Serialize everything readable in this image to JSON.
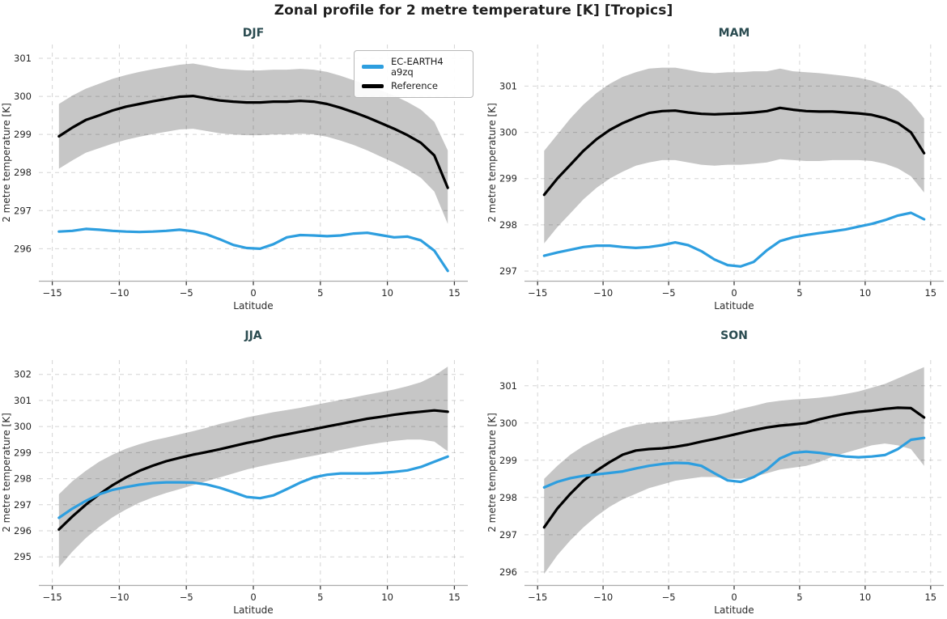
{
  "title": "Zonal profile for 2 metre temperature [K] [Tropics]",
  "colors": {
    "model_line": "#2d9edf",
    "reference_line": "#000000",
    "uncertainty_band": "#c6c6c6",
    "season_title": "#2a4b50",
    "grid": "rgba(0,0,0,0.17)",
    "axis_line": "#ababab",
    "tick_mark": "#3b3b3b",
    "tick_label": "#262626",
    "axis_label": "#2b2b2b",
    "figure_title": "#1f1f1f"
  },
  "legend": {
    "items": [
      {
        "label": "EC-EARTH4 a9zq",
        "color": "#2d9edf"
      },
      {
        "label": "Reference",
        "color": "#000000"
      }
    ]
  },
  "chart_data": [
    {
      "id": "djf",
      "type": "line",
      "title": "DJF",
      "xlabel": "Latitude",
      "ylabel": "2 metre temperature [K]",
      "xlim": [
        -16,
        16
      ],
      "ylim": [
        295.16,
        301.36
      ],
      "xticks": [
        -15,
        -10,
        -5,
        0,
        5,
        10,
        15
      ],
      "yticks": [
        296,
        297,
        298,
        299,
        300,
        301
      ],
      "legend": true,
      "x": [
        -14.5,
        -13.5,
        -12.5,
        -11.5,
        -10.5,
        -9.5,
        -8.5,
        -7.5,
        -6.5,
        -5.5,
        -4.5,
        -3.5,
        -2.5,
        -1.5,
        -0.5,
        0.5,
        1.5,
        2.5,
        3.5,
        4.5,
        5.5,
        6.5,
        7.5,
        8.5,
        9.5,
        10.5,
        11.5,
        12.5,
        13.5,
        14.5
      ],
      "series": [
        {
          "name": "EC-EARTH4 a9zq",
          "color": "#2d9edf",
          "values": [
            296.45,
            296.47,
            296.52,
            296.5,
            296.47,
            296.45,
            296.44,
            296.45,
            296.47,
            296.5,
            296.46,
            296.38,
            296.25,
            296.1,
            296.02,
            296.0,
            296.12,
            296.3,
            296.36,
            296.35,
            296.33,
            296.35,
            296.4,
            296.42,
            296.36,
            296.3,
            296.32,
            296.22,
            295.95,
            295.42
          ]
        },
        {
          "name": "Reference",
          "color": "#000000",
          "values": [
            298.95,
            299.18,
            299.38,
            299.5,
            299.63,
            299.73,
            299.8,
            299.87,
            299.93,
            299.99,
            300.01,
            299.95,
            299.89,
            299.86,
            299.84,
            299.84,
            299.86,
            299.86,
            299.88,
            299.86,
            299.8,
            299.7,
            299.58,
            299.45,
            299.3,
            299.15,
            298.98,
            298.78,
            298.45,
            297.6
          ]
        }
      ],
      "band": {
        "name": "reference-uncertainty",
        "upper": [
          299.8,
          300.02,
          300.2,
          300.33,
          300.46,
          300.56,
          300.64,
          300.71,
          300.77,
          300.83,
          300.86,
          300.8,
          300.73,
          300.7,
          300.68,
          300.68,
          300.7,
          300.7,
          300.72,
          300.7,
          300.64,
          300.54,
          300.42,
          300.3,
          300.16,
          300.02,
          299.85,
          299.65,
          299.33,
          298.58
        ],
        "lower": [
          298.1,
          298.32,
          298.52,
          298.64,
          298.76,
          298.86,
          298.94,
          299.01,
          299.07,
          299.13,
          299.15,
          299.09,
          299.03,
          299.0,
          298.98,
          298.98,
          299.0,
          299.0,
          299.02,
          299.0,
          298.94,
          298.84,
          298.72,
          298.58,
          298.42,
          298.26,
          298.08,
          297.86,
          297.5,
          296.65
        ]
      }
    },
    {
      "id": "mam",
      "type": "line",
      "title": "MAM",
      "xlabel": "Latitude",
      "ylabel": "2 metre temperature [K]",
      "xlim": [
        -16,
        16
      ],
      "ylim": [
        296.79,
        301.9
      ],
      "xticks": [
        -15,
        -10,
        -5,
        0,
        5,
        10,
        15
      ],
      "yticks": [
        297,
        298,
        299,
        300,
        301
      ],
      "legend": false,
      "x": [
        -14.5,
        -13.5,
        -12.5,
        -11.5,
        -10.5,
        -9.5,
        -8.5,
        -7.5,
        -6.5,
        -5.5,
        -4.5,
        -3.5,
        -2.5,
        -1.5,
        -0.5,
        0.5,
        1.5,
        2.5,
        3.5,
        4.5,
        5.5,
        6.5,
        7.5,
        8.5,
        9.5,
        10.5,
        11.5,
        12.5,
        13.5,
        14.5
      ],
      "series": [
        {
          "name": "EC-EARTH4 a9zq",
          "color": "#2d9edf",
          "values": [
            297.33,
            297.4,
            297.46,
            297.52,
            297.55,
            297.55,
            297.52,
            297.5,
            297.52,
            297.56,
            297.62,
            297.56,
            297.43,
            297.25,
            297.13,
            297.1,
            297.2,
            297.45,
            297.65,
            297.73,
            297.78,
            297.82,
            297.86,
            297.9,
            297.96,
            298.02,
            298.1,
            298.2,
            298.26,
            298.12
          ]
        },
        {
          "name": "Reference",
          "color": "#000000",
          "values": [
            298.65,
            299.0,
            299.3,
            299.6,
            299.85,
            300.05,
            300.2,
            300.32,
            300.42,
            300.46,
            300.47,
            300.43,
            300.4,
            300.39,
            300.4,
            300.41,
            300.43,
            300.46,
            300.53,
            300.49,
            300.46,
            300.45,
            300.45,
            300.43,
            300.41,
            300.38,
            300.31,
            300.2,
            300.0,
            299.55
          ]
        }
      ],
      "band": {
        "name": "reference-uncertainty",
        "upper": [
          299.6,
          299.95,
          300.3,
          300.6,
          300.85,
          301.05,
          301.2,
          301.3,
          301.38,
          301.4,
          301.4,
          301.35,
          301.3,
          301.28,
          301.3,
          301.3,
          301.32,
          301.32,
          301.38,
          301.32,
          301.3,
          301.28,
          301.25,
          301.22,
          301.18,
          301.12,
          301.02,
          300.9,
          300.65,
          300.3
        ],
        "lower": [
          297.6,
          297.95,
          298.25,
          298.55,
          298.8,
          299.0,
          299.15,
          299.28,
          299.35,
          299.4,
          299.4,
          299.35,
          299.3,
          299.28,
          299.3,
          299.3,
          299.32,
          299.35,
          299.42,
          299.4,
          299.38,
          299.38,
          299.4,
          299.4,
          299.4,
          299.38,
          299.32,
          299.22,
          299.05,
          298.7
        ]
      }
    },
    {
      "id": "jja",
      "type": "line",
      "title": "JJA",
      "xlabel": "Latitude",
      "ylabel": "2 metre temperature [K]",
      "xlim": [
        -16,
        16
      ],
      "ylim": [
        293.92,
        302.55
      ],
      "xticks": [
        -15,
        -10,
        -5,
        0,
        5,
        10,
        15
      ],
      "yticks": [
        295,
        296,
        297,
        298,
        299,
        300,
        301,
        302
      ],
      "legend": false,
      "x": [
        -14.5,
        -13.5,
        -12.5,
        -11.5,
        -10.5,
        -9.5,
        -8.5,
        -7.5,
        -6.5,
        -5.5,
        -4.5,
        -3.5,
        -2.5,
        -1.5,
        -0.5,
        0.5,
        1.5,
        2.5,
        3.5,
        4.5,
        5.5,
        6.5,
        7.5,
        8.5,
        9.5,
        10.5,
        11.5,
        12.5,
        13.5,
        14.5
      ],
      "series": [
        {
          "name": "EC-EARTH4 a9zq",
          "color": "#2d9edf",
          "values": [
            296.5,
            296.85,
            297.15,
            297.4,
            297.57,
            297.68,
            297.77,
            297.83,
            297.86,
            297.86,
            297.85,
            297.78,
            297.65,
            297.48,
            297.3,
            297.25,
            297.36,
            297.6,
            297.85,
            298.05,
            298.15,
            298.2,
            298.2,
            298.2,
            298.22,
            298.26,
            298.32,
            298.45,
            298.65,
            298.85
          ]
        },
        {
          "name": "Reference",
          "color": "#000000",
          "values": [
            296.05,
            296.55,
            297.0,
            297.4,
            297.75,
            298.05,
            298.3,
            298.5,
            298.67,
            298.8,
            298.92,
            299.02,
            299.13,
            299.25,
            299.37,
            299.47,
            299.6,
            299.7,
            299.8,
            299.9,
            300.0,
            300.1,
            300.2,
            300.3,
            300.37,
            300.45,
            300.52,
            300.57,
            300.62,
            300.57
          ]
        }
      ],
      "band": {
        "name": "reference-uncertainty",
        "upper": [
          297.4,
          297.9,
          298.3,
          298.65,
          298.92,
          299.15,
          299.32,
          299.47,
          299.58,
          299.7,
          299.82,
          299.95,
          300.1,
          300.22,
          300.35,
          300.45,
          300.55,
          300.63,
          300.72,
          300.82,
          300.92,
          301.02,
          301.12,
          301.22,
          301.32,
          301.42,
          301.55,
          301.7,
          301.95,
          302.3
        ],
        "lower": [
          294.6,
          295.2,
          295.72,
          296.15,
          296.52,
          296.82,
          297.08,
          297.28,
          297.45,
          297.6,
          297.75,
          297.9,
          298.05,
          298.2,
          298.35,
          298.47,
          298.58,
          298.68,
          298.78,
          298.88,
          298.98,
          299.1,
          299.2,
          299.3,
          299.38,
          299.45,
          299.5,
          299.5,
          299.42,
          299.05
        ]
      }
    },
    {
      "id": "son",
      "type": "line",
      "title": "SON",
      "xlabel": "Latitude",
      "ylabel": "2 metre temperature [K]",
      "xlim": [
        -16,
        16
      ],
      "ylim": [
        295.65,
        301.69
      ],
      "xticks": [
        -15,
        -10,
        -5,
        0,
        5,
        10,
        15
      ],
      "yticks": [
        296,
        297,
        298,
        299,
        300,
        301
      ],
      "legend": false,
      "x": [
        -14.5,
        -13.5,
        -12.5,
        -11.5,
        -10.5,
        -9.5,
        -8.5,
        -7.5,
        -6.5,
        -5.5,
        -4.5,
        -3.5,
        -2.5,
        -1.5,
        -0.5,
        0.5,
        1.5,
        2.5,
        3.5,
        4.5,
        5.5,
        6.5,
        7.5,
        8.5,
        9.5,
        10.5,
        11.5,
        12.5,
        13.5,
        14.5
      ],
      "series": [
        {
          "name": "EC-EARTH4 a9zq",
          "color": "#2d9edf",
          "values": [
            298.27,
            298.42,
            298.52,
            298.58,
            298.62,
            298.66,
            298.7,
            298.78,
            298.85,
            298.9,
            298.93,
            298.92,
            298.85,
            298.65,
            298.46,
            298.42,
            298.55,
            298.75,
            299.05,
            299.2,
            299.23,
            299.2,
            299.15,
            299.1,
            299.08,
            299.1,
            299.14,
            299.3,
            299.55,
            299.6
          ]
        },
        {
          "name": "Reference",
          "color": "#000000",
          "values": [
            297.2,
            297.7,
            298.1,
            298.45,
            298.72,
            298.95,
            299.15,
            299.26,
            299.3,
            299.32,
            299.36,
            299.42,
            299.5,
            299.57,
            299.65,
            299.73,
            299.81,
            299.88,
            299.93,
            299.96,
            300.0,
            300.1,
            300.18,
            300.25,
            300.3,
            300.33,
            300.38,
            300.41,
            300.4,
            300.15
          ]
        }
      ],
      "band": {
        "name": "reference-uncertainty",
        "upper": [
          298.5,
          298.85,
          299.15,
          299.38,
          299.56,
          299.72,
          299.86,
          299.95,
          300.0,
          300.03,
          300.06,
          300.1,
          300.15,
          300.2,
          300.28,
          300.38,
          300.46,
          300.55,
          300.6,
          300.63,
          300.65,
          300.68,
          300.72,
          300.78,
          300.85,
          300.95,
          301.05,
          301.2,
          301.35,
          301.5
        ],
        "lower": [
          295.95,
          296.45,
          296.85,
          297.2,
          297.5,
          297.75,
          297.95,
          298.1,
          298.25,
          298.35,
          298.45,
          298.5,
          298.55,
          298.55,
          298.5,
          298.5,
          298.55,
          298.65,
          298.75,
          298.8,
          298.85,
          298.95,
          299.1,
          299.2,
          299.3,
          299.4,
          299.45,
          299.4,
          299.3,
          298.85
        ]
      }
    }
  ]
}
